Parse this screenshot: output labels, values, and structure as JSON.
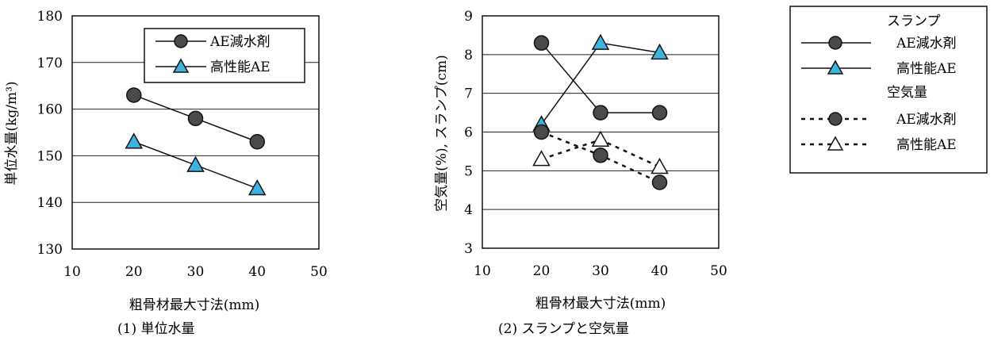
{
  "chart_data": [
    {
      "type": "line",
      "caption": "(1) 単位水量",
      "xlabel": "粗骨材最大寸法(mm)",
      "ylabel": "単位水量(kg/m³)",
      "xlim": [
        10,
        50
      ],
      "ylim": [
        130,
        180
      ],
      "xticks": [
        "10",
        "20",
        "30",
        "40",
        "50"
      ],
      "yticks": [
        "130",
        "140",
        "150",
        "160",
        "170",
        "180"
      ],
      "grid": "horizontal",
      "legend": "top-right",
      "x": [
        20,
        30,
        40
      ],
      "series": [
        {
          "name": "AE減水剤",
          "marker": "circle",
          "line": "solid",
          "values": [
            163,
            158,
            153
          ]
        },
        {
          "name": "高性能AE",
          "marker": "triangle",
          "line": "solid",
          "values": [
            153,
            148,
            143
          ]
        }
      ]
    },
    {
      "type": "line",
      "caption": "(2) スランプと空気量",
      "xlabel": "粗骨材最大寸法(mm)",
      "ylabel": "空気量(%), スランプ(cm)",
      "xlim": [
        10,
        50
      ],
      "ylim": [
        3,
        9
      ],
      "xticks": [
        "10",
        "20",
        "30",
        "40",
        "50"
      ],
      "yticks": [
        "3",
        "4",
        "5",
        "6",
        "7",
        "8",
        "9"
      ],
      "grid": "horizontal",
      "legend": "outside-right",
      "x": [
        20,
        30,
        40
      ],
      "legend_groups": [
        "スランプ",
        "空気量"
      ],
      "series": [
        {
          "group": "スランプ",
          "name": "AE減水剤",
          "marker": "circle",
          "line": "solid",
          "values": [
            8.3,
            6.5,
            6.5
          ]
        },
        {
          "group": "スランプ",
          "name": "高性能AE",
          "marker": "triangle",
          "line": "solid",
          "values": [
            6.2,
            8.3,
            8.05
          ]
        },
        {
          "group": "空気量",
          "name": "AE減水剤",
          "marker": "circle",
          "line": "dotted",
          "values": [
            6.0,
            5.4,
            4.7
          ]
        },
        {
          "group": "空気量",
          "name": "高性能AE",
          "marker": "open-triangle",
          "line": "dotted",
          "values": [
            5.3,
            5.8,
            5.1
          ]
        }
      ]
    }
  ],
  "colors": {
    "circle_fill": "#4a4a4a",
    "triangle_fill": "#3fb3e0",
    "open_triangle_fill": "#ffffff",
    "line": "#111111",
    "grid": "#222222"
  }
}
